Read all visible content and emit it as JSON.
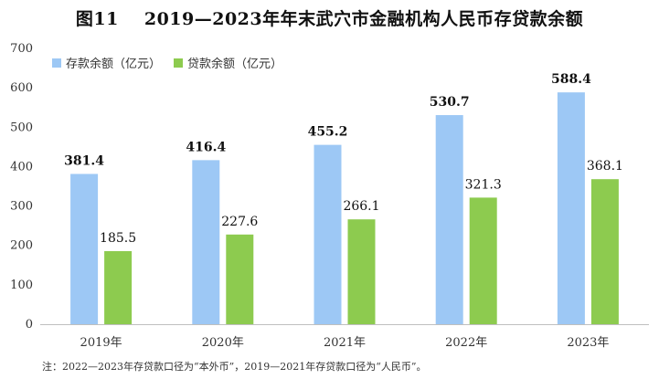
{
  "title": {
    "fig_label": "图11",
    "text": "2019—2023年年末武穴市金融机构人民币存贷款余额"
  },
  "note": "注：2022—2023年存贷款口径为“本外币”，2019—2021年存贷款口径为“人民币”。",
  "chart_data": {
    "type": "bar",
    "title": "2019—2023年年末武穴市金融机构人民币存贷款余额",
    "categories": [
      "2019年",
      "2020年",
      "2021年",
      "2022年",
      "2023年"
    ],
    "series": [
      {
        "name": "存款余额（亿元）",
        "values": [
          381.4,
          416.4,
          455.2,
          530.7,
          588.4
        ],
        "labels": [
          "381.4",
          "416.4",
          "455.2",
          "530.7",
          "588.4"
        ],
        "color": "#9DC8F5"
      },
      {
        "name": "贷款余额（亿元）",
        "values": [
          185.5,
          227.6,
          266.1,
          321.3,
          368.1
        ],
        "labels": [
          "185.5",
          "227.6",
          "266.1",
          "321.3",
          "368.1"
        ],
        "color": "#8DCB4F"
      }
    ],
    "yticks": [
      "0",
      "100",
      "200",
      "300",
      "400",
      "500",
      "600",
      "700"
    ],
    "ylim": [
      0,
      700
    ],
    "grid": false,
    "legend": "top-left",
    "xlabel": "",
    "ylabel": ""
  }
}
